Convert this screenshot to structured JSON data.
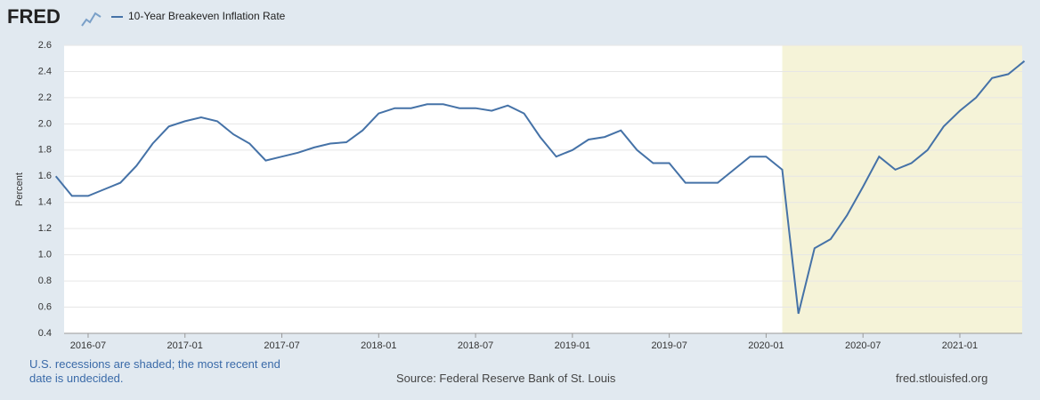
{
  "logo": "FRED",
  "chart_data": {
    "type": "line",
    "series": [
      {
        "name": "10-Year Breakeven Inflation Rate",
        "color": "#4572a7",
        "values": [
          1.6,
          1.45,
          1.45,
          1.5,
          1.55,
          1.68,
          1.85,
          1.98,
          2.02,
          2.05,
          2.02,
          1.92,
          1.85,
          1.72,
          1.75,
          1.78,
          1.82,
          1.85,
          1.86,
          1.95,
          2.08,
          2.12,
          2.12,
          2.15,
          2.15,
          2.12,
          2.12,
          2.1,
          2.14,
          2.08,
          1.9,
          1.75,
          1.8,
          1.88,
          1.9,
          1.95,
          1.8,
          1.7,
          1.7,
          1.55,
          1.55,
          1.55,
          1.65,
          1.75,
          1.75,
          1.65,
          0.55,
          1.05,
          1.12,
          1.3,
          1.52,
          1.75,
          1.65,
          1.7,
          1.8,
          1.98,
          2.1,
          2.2,
          2.35,
          2.38,
          2.48
        ]
      }
    ],
    "x": [
      "2016-05",
      "2016-06",
      "2016-07",
      "2016-08",
      "2016-09",
      "2016-10",
      "2016-11",
      "2016-12",
      "2017-01",
      "2017-02",
      "2017-03",
      "2017-04",
      "2017-05",
      "2017-06",
      "2017-07",
      "2017-08",
      "2017-09",
      "2017-10",
      "2017-11",
      "2017-12",
      "2018-01",
      "2018-02",
      "2018-03",
      "2018-04",
      "2018-05",
      "2018-06",
      "2018-07",
      "2018-08",
      "2018-09",
      "2018-10",
      "2018-11",
      "2018-12",
      "2019-01",
      "2019-02",
      "2019-03",
      "2019-04",
      "2019-05",
      "2019-06",
      "2019-07",
      "2019-08",
      "2019-09",
      "2019-10",
      "2019-11",
      "2019-12",
      "2020-01",
      "2020-02",
      "2020-03",
      "2020-04",
      "2020-05",
      "2020-06",
      "2020-07",
      "2020-08",
      "2020-09",
      "2020-10",
      "2020-11",
      "2020-12",
      "2021-01",
      "2021-02",
      "2021-03",
      "2021-04",
      "2021-05"
    ],
    "xlim": [
      "2016-05",
      "2021-05"
    ],
    "xticks": [
      "2016-07",
      "2017-01",
      "2017-07",
      "2018-01",
      "2018-07",
      "2019-01",
      "2019-07",
      "2020-01",
      "2020-07",
      "2021-01"
    ],
    "ylim": [
      0.4,
      2.6
    ],
    "yticks": [
      0.4,
      0.6,
      0.8,
      {
        "value": 1,
        "label": "1.0"
      },
      1.2,
      1.4,
      1.6,
      1.8,
      {
        "value": 2,
        "label": "2.0"
      },
      2.2,
      2.4,
      2.6
    ],
    "ylabel": "Percent",
    "recession_start": "2020-02",
    "recession_color": "#f5f3d8",
    "grid": true
  },
  "footnote": "U.S. recessions are shaded; the most recent end date is undecided.",
  "source": "Source: Federal Reserve Bank of St. Louis",
  "site": "fred.stlouisfed.org"
}
